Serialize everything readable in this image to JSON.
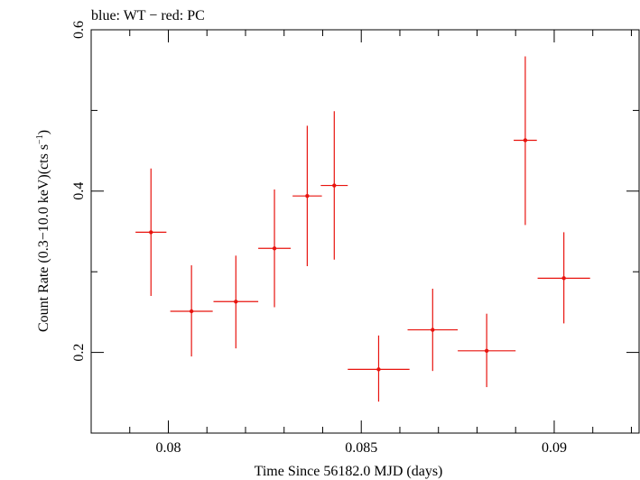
{
  "chart_data": {
    "type": "scatter",
    "title": "blue: WT − red: PC",
    "xlabel": "Time Since 56182.0 MJD (days)",
    "ylabel_main": "Count Rate (0.3−10.0 keV)(cts s",
    "ylabel_sup": "−1",
    "ylabel_end": ")",
    "xlim": [
      0.078,
      0.0922
    ],
    "ylim": [
      0.1,
      0.6
    ],
    "x_ticks_major": [
      0.08,
      0.085,
      0.09
    ],
    "x_tick_labels": [
      "0.08",
      "0.085",
      "0.09"
    ],
    "y_ticks_major": [
      0.2,
      0.4,
      0.6
    ],
    "y_tick_labels": [
      "0.2",
      "0.4",
      "0.6"
    ],
    "x_ticks_minor": [
      0.079,
      0.081,
      0.082,
      0.083,
      0.084,
      0.086,
      0.087,
      0.088,
      0.089,
      0.091,
      0.092
    ],
    "y_ticks_minor": [
      0.1,
      0.3,
      0.5
    ],
    "series": [
      {
        "name": "PC",
        "color": "#e8140f",
        "points": [
          {
            "x": 0.07955,
            "xerr": 0.0004,
            "y": 0.349,
            "ylo": 0.27,
            "yhi": 0.428
          },
          {
            "x": 0.0806,
            "xerr": 0.00055,
            "y": 0.251,
            "ylo": 0.195,
            "yhi": 0.308
          },
          {
            "x": 0.08175,
            "xerr": 0.00058,
            "y": 0.263,
            "ylo": 0.205,
            "yhi": 0.32
          },
          {
            "x": 0.08275,
            "xerr": 0.00042,
            "y": 0.329,
            "ylo": 0.256,
            "yhi": 0.402
          },
          {
            "x": 0.0836,
            "xerr": 0.00038,
            "y": 0.394,
            "ylo": 0.307,
            "yhi": 0.481
          },
          {
            "x": 0.0843,
            "xerr": 0.00035,
            "y": 0.407,
            "ylo": 0.315,
            "yhi": 0.499
          },
          {
            "x": 0.08545,
            "xerr": 0.0008,
            "y": 0.179,
            "ylo": 0.139,
            "yhi": 0.221
          },
          {
            "x": 0.08685,
            "xerr": 0.00065,
            "y": 0.228,
            "ylo": 0.177,
            "yhi": 0.279
          },
          {
            "x": 0.08825,
            "xerr": 0.00075,
            "y": 0.202,
            "ylo": 0.157,
            "yhi": 0.248
          },
          {
            "x": 0.08925,
            "xerr": 0.0003,
            "y": 0.463,
            "ylo": 0.358,
            "yhi": 0.567
          },
          {
            "x": 0.09025,
            "xerr": 0.00068,
            "y": 0.292,
            "ylo": 0.236,
            "yhi": 0.349
          }
        ]
      }
    ]
  }
}
